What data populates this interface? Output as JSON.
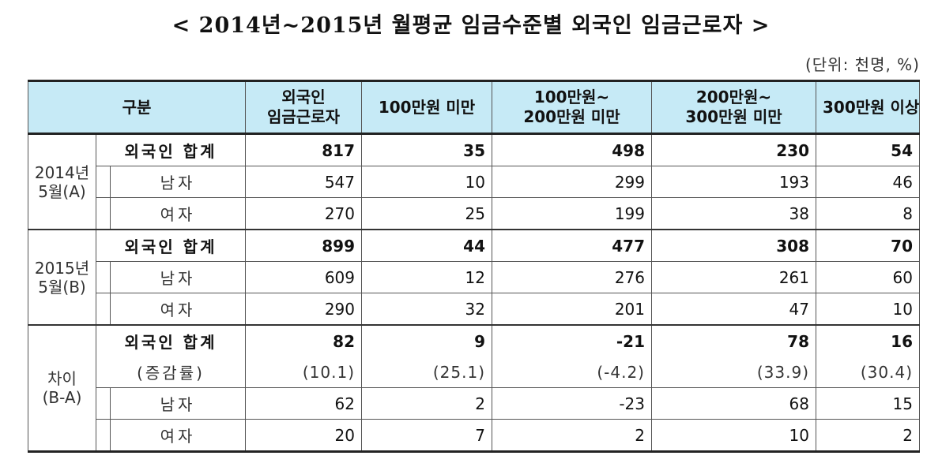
{
  "title": "< 2014년~2015년 월평균 임금수준별 외국인 임금근로자 >",
  "unit": "(단위: 천명, %)",
  "headers": {
    "category": "구분",
    "col1_line1": "외국인",
    "col1_line2": "임금근로자",
    "col2": "100만원 미만",
    "col3_line1": "100만원~",
    "col3_line2": "200만원 미만",
    "col4_line1": "200만원~",
    "col4_line2": "300만원 미만",
    "col5": "300만원 이상"
  },
  "sections": [
    {
      "label_line1": "2014년",
      "label_line2": "5월(A)",
      "total": {
        "label": "외국인 합계",
        "values": [
          "817",
          "35",
          "498",
          "230",
          "54"
        ]
      },
      "male": {
        "label": "남자",
        "values": [
          "547",
          "10",
          "299",
          "193",
          "46"
        ]
      },
      "female": {
        "label": "여자",
        "values": [
          "270",
          "25",
          "199",
          "38",
          "8"
        ]
      }
    },
    {
      "label_line1": "2015년",
      "label_line2": "5월(B)",
      "total": {
        "label": "외국인 합계",
        "values": [
          "899",
          "44",
          "477",
          "308",
          "70"
        ]
      },
      "male": {
        "label": "남자",
        "values": [
          "609",
          "12",
          "276",
          "261",
          "60"
        ]
      },
      "female": {
        "label": "여자",
        "values": [
          "290",
          "32",
          "201",
          "47",
          "10"
        ]
      }
    },
    {
      "label_line1": "차이",
      "label_line2": "(B-A)",
      "total": {
        "label": "외국인 합계",
        "values": [
          "82",
          "9",
          "-21",
          "78",
          "16"
        ]
      },
      "rate": {
        "label": "(증감률)",
        "values": [
          "(10.1)",
          "(25.1)",
          "(-4.2)",
          "(33.9)",
          "(30.4)"
        ]
      },
      "male": {
        "label": "남자",
        "values": [
          "62",
          "2",
          "-23",
          "68",
          "15"
        ]
      },
      "female": {
        "label": "여자",
        "values": [
          "20",
          "7",
          "2",
          "10",
          "2"
        ]
      }
    }
  ]
}
